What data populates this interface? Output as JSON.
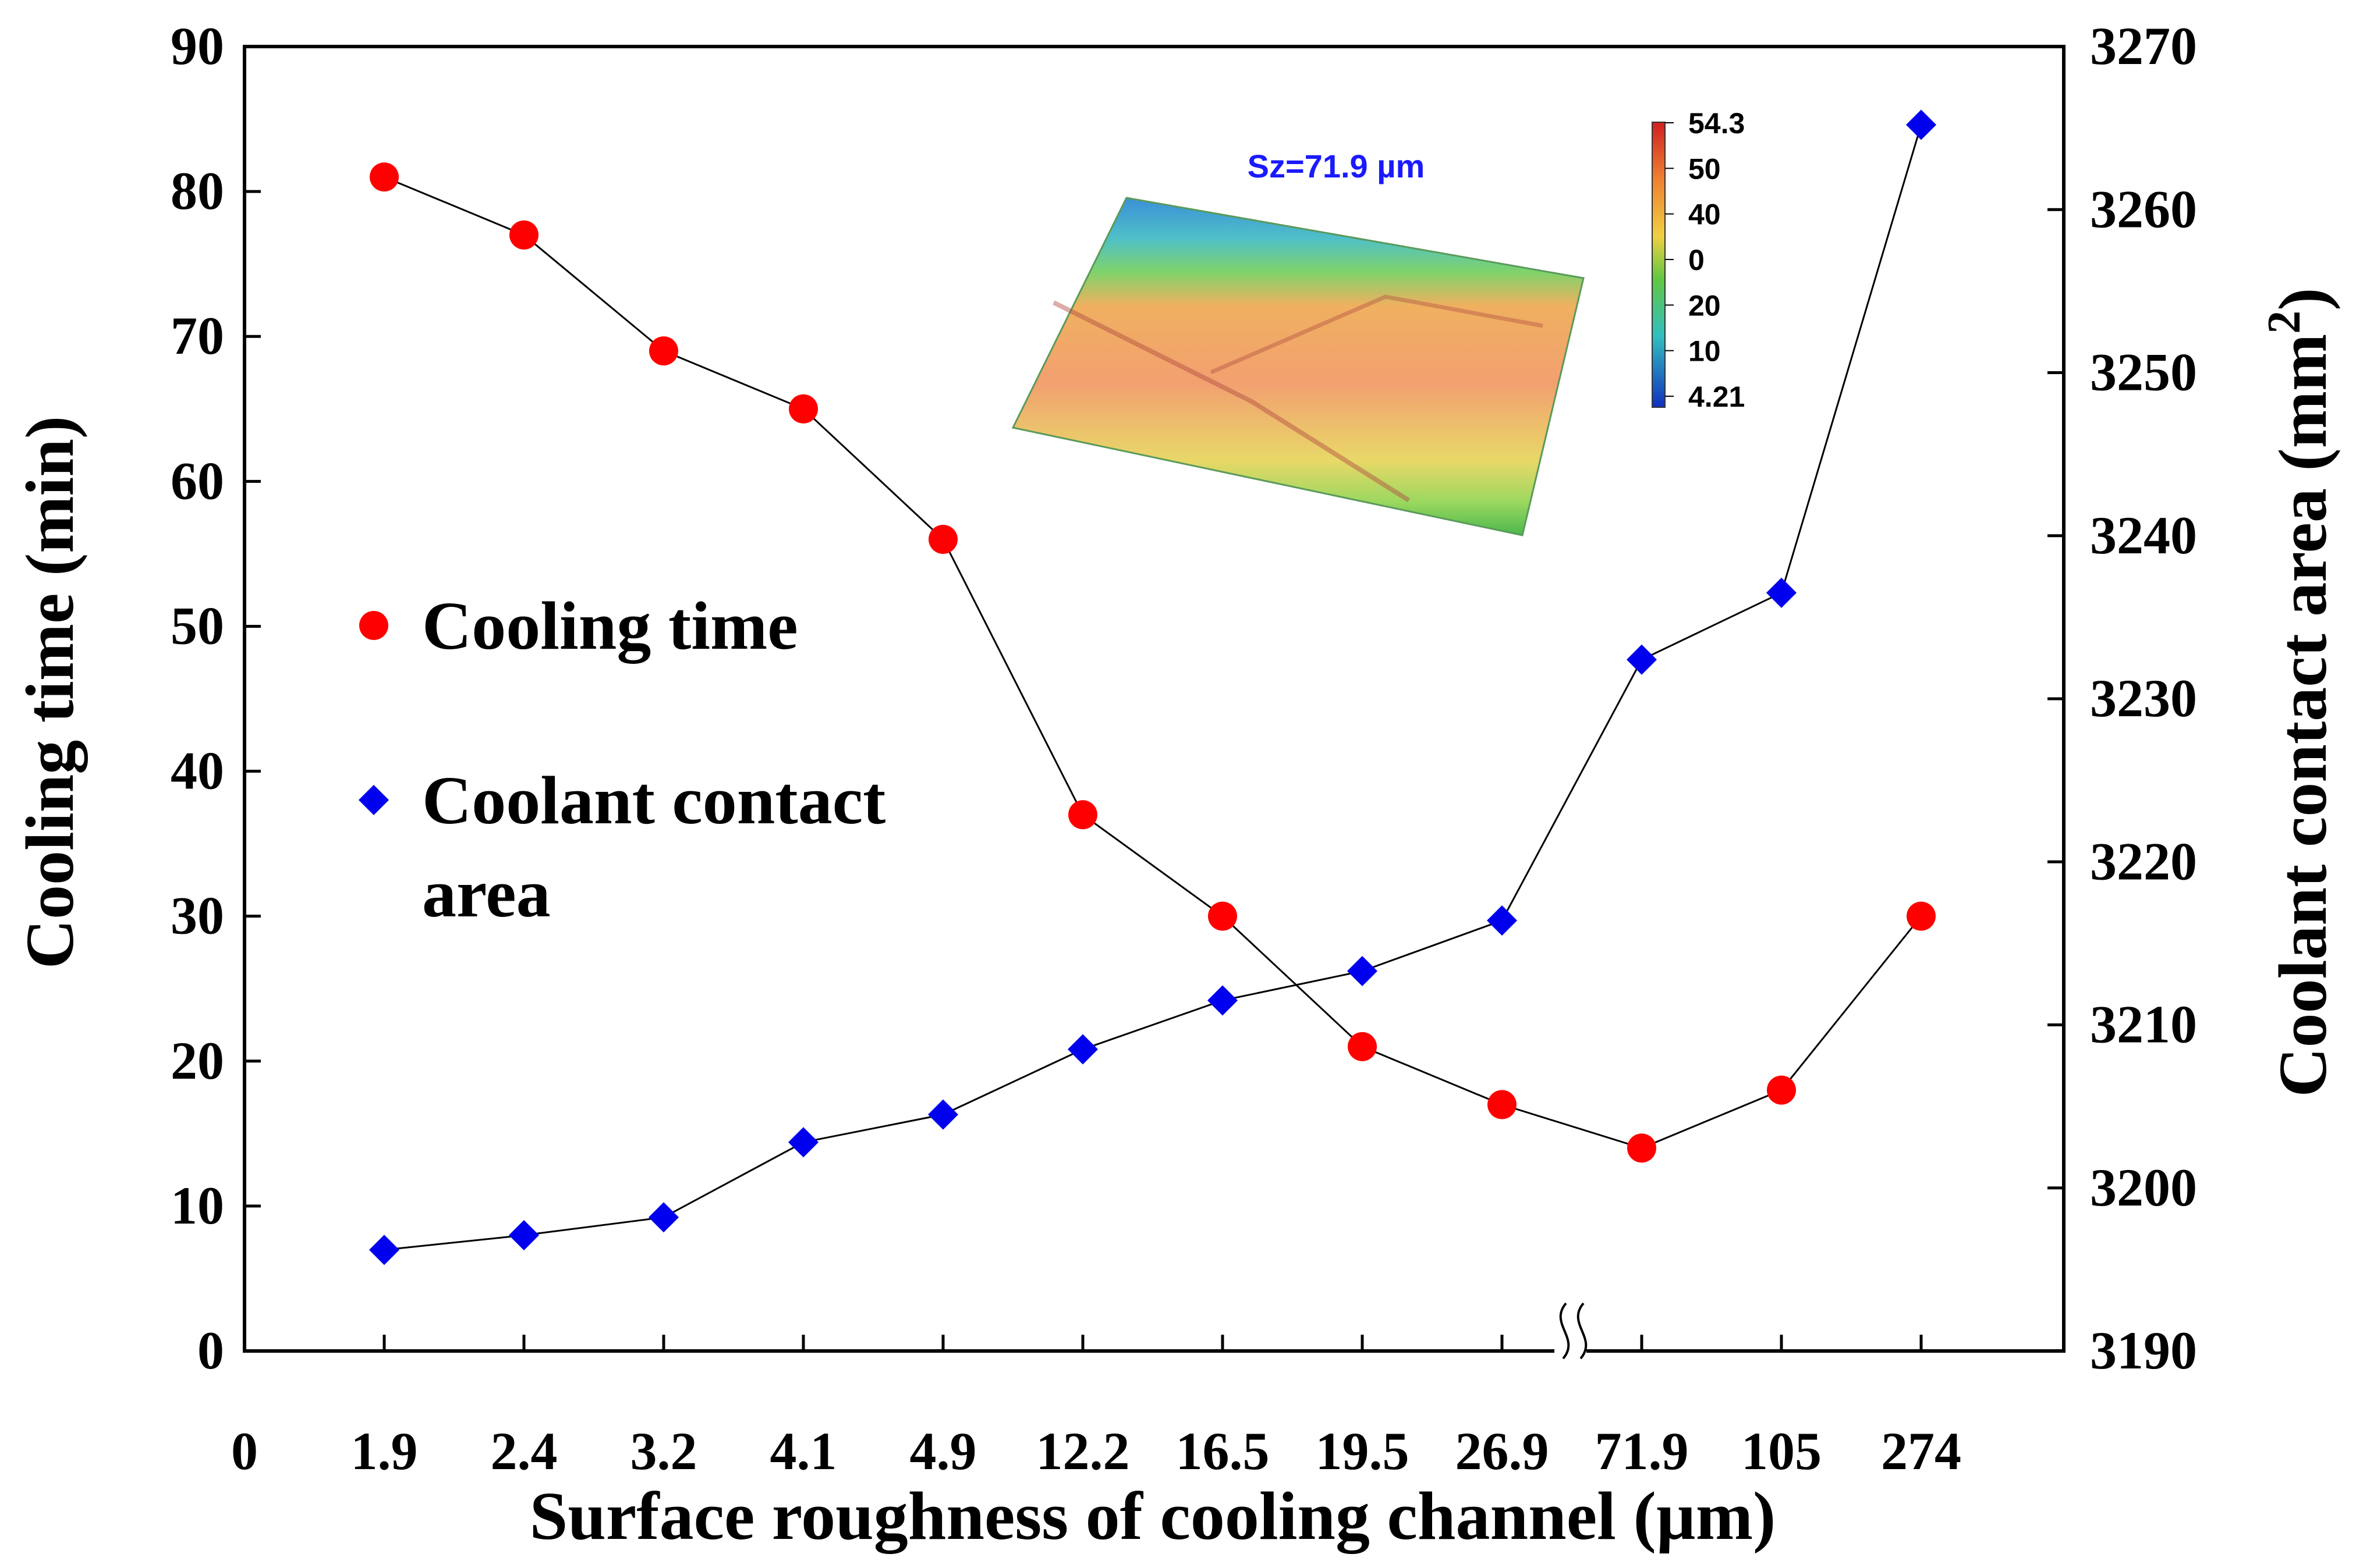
{
  "chart_data": {
    "type": "line",
    "categories": [
      "1.9",
      "2.4",
      "3.2",
      "4.1",
      "4.9",
      "12.2",
      "16.5",
      "19.5",
      "26.9",
      "71.9",
      "105",
      "274"
    ],
    "x_origin_label": "0",
    "xlabel": "Surface roughness of cooling channel (µm)",
    "ylabel_left": "Cooling time (min)",
    "ylabel_right": "Coolant contact area (mm",
    "ylabel_right_sup": "2",
    "ylabel_right_close": ")",
    "ylim_left": [
      0,
      90
    ],
    "ylim_right": [
      3190,
      3270
    ],
    "yticks_left": [
      "0",
      "10",
      "20",
      "30",
      "40",
      "50",
      "60",
      "70",
      "80",
      "90"
    ],
    "yticks_right": [
      "3190",
      "3200",
      "3210",
      "3220",
      "3230",
      "3240",
      "3250",
      "3260",
      "3270"
    ],
    "axis_break_between": [
      "26.9",
      "71.9"
    ],
    "series": [
      {
        "name": "Cooling time",
        "legend_lines": [
          "Cooling time"
        ],
        "axis": "left",
        "marker": "circle",
        "color": "#ff0000",
        "values": [
          81,
          77,
          69,
          65,
          56,
          37,
          30,
          21,
          17,
          14,
          18,
          30
        ]
      },
      {
        "name": "Coolant contact area",
        "legend_lines": [
          "Coolant contact",
          "area"
        ],
        "axis": "right",
        "marker": "diamond",
        "color": "#0000ee",
        "values": [
          3196.2,
          3197.1,
          3198.2,
          3202.8,
          3204.5,
          3208.5,
          3211.5,
          3213.3,
          3216.4,
          3232.4,
          3236.5,
          3265.2
        ]
      }
    ],
    "inset": {
      "title": "Sz=71.9 µm",
      "title_color": "#1a1aff",
      "colorbar_labels": [
        "54.3",
        "50",
        "40",
        "0",
        "20",
        "10",
        "4.21"
      ]
    }
  }
}
